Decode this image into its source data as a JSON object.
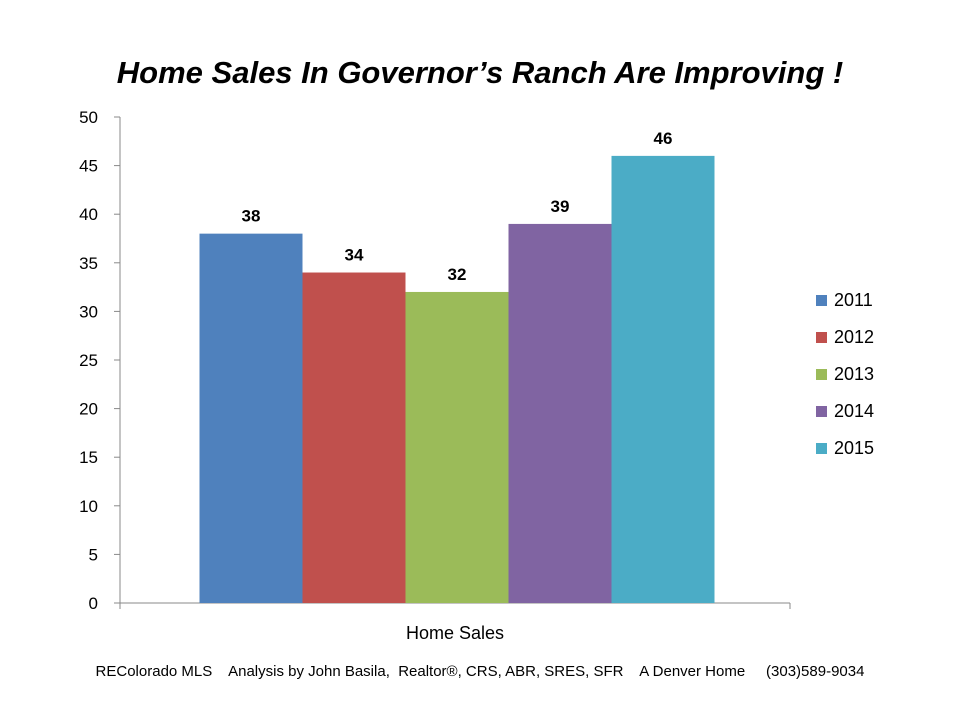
{
  "chart_data": {
    "type": "bar",
    "title": "Home Sales In Governor’s Ranch Are Improving !",
    "xlabel": "Home Sales",
    "ylabel": "",
    "categories": [
      "Home Sales"
    ],
    "series": [
      {
        "name": "2011",
        "values": [
          38
        ],
        "color": "#4F81BD"
      },
      {
        "name": "2012",
        "values": [
          34
        ],
        "color": "#C0504D"
      },
      {
        "name": "2013",
        "values": [
          32
        ],
        "color": "#9BBB59"
      },
      {
        "name": "2014",
        "values": [
          39
        ],
        "color": "#8064A2"
      },
      {
        "name": "2015",
        "values": [
          46
        ],
        "color": "#4BACC6"
      }
    ],
    "ylim": [
      0,
      50
    ],
    "yticks": [
      0,
      5,
      10,
      15,
      20,
      25,
      30,
      35,
      40,
      45,
      50
    ],
    "grid": false,
    "legend": "right",
    "data_labels": true
  },
  "footer": {
    "credit": "REColorado MLS    Analysis by John Basila,  Realtor®, CRS, ABR, SRES, SFR    A Denver Home     (303)589-9034"
  }
}
